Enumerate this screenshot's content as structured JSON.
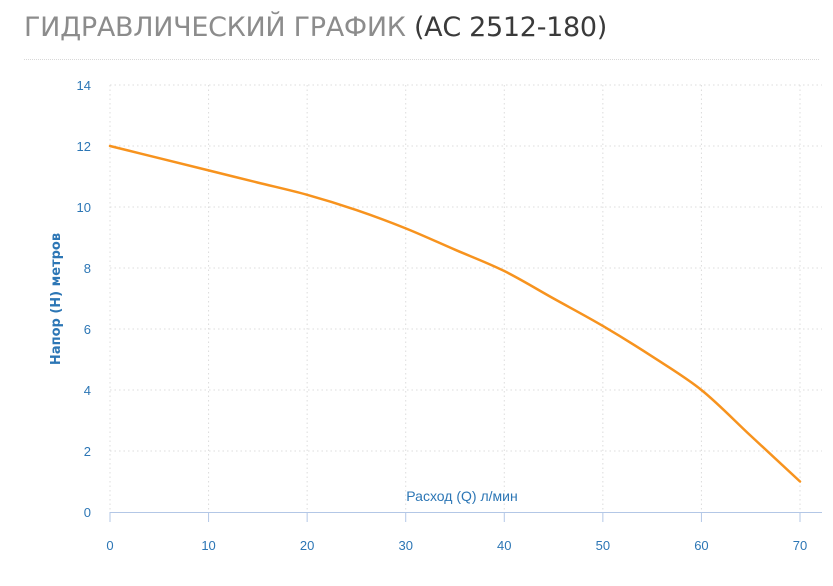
{
  "heading": {
    "main": "ГИДРАВЛИЧЕСКИЙ ГРАФИК",
    "model": "(АС 2512-180)"
  },
  "chart_data": {
    "type": "line",
    "xlabel": "Расход (Q) л/мин",
    "ylabel": "Напор (H) метров",
    "xlim": [
      0,
      70
    ],
    "ylim": [
      0,
      14
    ],
    "x_ticks": [
      0,
      10,
      20,
      30,
      40,
      50,
      60,
      70
    ],
    "y_ticks": [
      0,
      2,
      4,
      6,
      8,
      10,
      12,
      14
    ],
    "grid": true,
    "legend": "none",
    "series": [
      {
        "color": "#f7931e",
        "x": [
          0,
          5,
          10,
          15,
          20,
          25,
          30,
          35,
          40,
          45,
          50,
          55,
          60,
          65,
          70
        ],
        "y": [
          12.0,
          11.6,
          11.2,
          10.8,
          10.4,
          9.9,
          9.3,
          8.6,
          7.9,
          7.0,
          6.1,
          5.1,
          4.0,
          2.5,
          1.0
        ]
      }
    ],
    "colors": {
      "line": "#f7931e",
      "axis_text": "#2c76b5",
      "grid": "#dcdcdc",
      "x_axis": "#b3c7e6"
    }
  }
}
